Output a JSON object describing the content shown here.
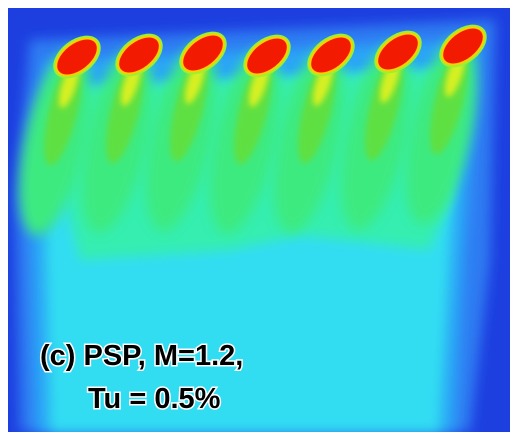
{
  "label": {
    "line1": "(c) PSP, M=1.2,",
    "line2": "Tu = 0.5%"
  }
}
